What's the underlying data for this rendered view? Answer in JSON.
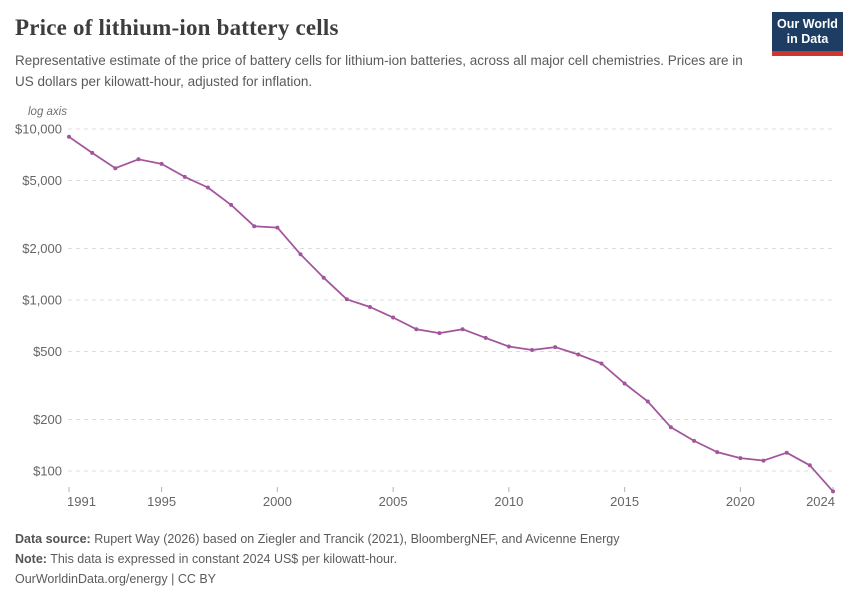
{
  "header": {
    "title": "Price of lithium-ion battery cells",
    "subtitle": "Representative estimate of the price of battery cells for lithium-ion batteries, across all major cell chemistries. Prices are in US dollars per kilowatt-hour, adjusted for inflation.",
    "logo": {
      "line1": "Our World",
      "line2": "in Data",
      "bg_color": "#1d3d63",
      "accent_color": "#cd3731"
    }
  },
  "chart_data": {
    "type": "line",
    "title": "Price of lithium-ion battery cells",
    "series_name": "Price of lithium-ion battery cells (US$/kWh)",
    "y_scale": "log",
    "axis_note": "log axis",
    "grid": true,
    "legend_position": "none",
    "line_color": "#a2559c",
    "x": [
      1991,
      1992,
      1993,
      1994,
      1995,
      1996,
      1997,
      1998,
      1999,
      2000,
      2001,
      2002,
      2003,
      2004,
      2005,
      2006,
      2007,
      2008,
      2009,
      2010,
      2011,
      2012,
      2013,
      2014,
      2015,
      2016,
      2017,
      2018,
      2019,
      2020,
      2021,
      2022,
      2023,
      2024
    ],
    "values": [
      9000,
      7250,
      5900,
      6650,
      6250,
      5250,
      4550,
      3600,
      2700,
      2650,
      1850,
      1350,
      1010,
      910,
      790,
      675,
      640,
      675,
      600,
      535,
      510,
      530,
      480,
      425,
      325,
      255,
      180,
      150,
      129,
      119,
      115,
      128,
      108,
      76
    ],
    "x_ticks": [
      1991,
      1995,
      2000,
      2005,
      2010,
      2015,
      2020,
      2024
    ],
    "y_ticks": [
      {
        "value": 100,
        "label": "$100"
      },
      {
        "value": 200,
        "label": "$200"
      },
      {
        "value": 500,
        "label": "$500"
      },
      {
        "value": 1000,
        "label": "$1,000"
      },
      {
        "value": 2000,
        "label": "$2,000"
      },
      {
        "value": 5000,
        "label": "$5,000"
      },
      {
        "value": 10000,
        "label": "$10,000"
      }
    ],
    "xlim": [
      1991,
      2024
    ],
    "ylim": [
      75,
      10000
    ]
  },
  "footer": {
    "data_source_label": "Data source:",
    "data_source": "Rupert Way (2026) based on Ziegler and Trancik (2021), BloombergNEF, and Avicenne Energy",
    "note_label": "Note:",
    "note": "This data is expressed in constant 2024 US$ per kilowatt-hour.",
    "attribution_url": "OurWorldinData.org/energy",
    "attribution_license": " | CC BY"
  }
}
